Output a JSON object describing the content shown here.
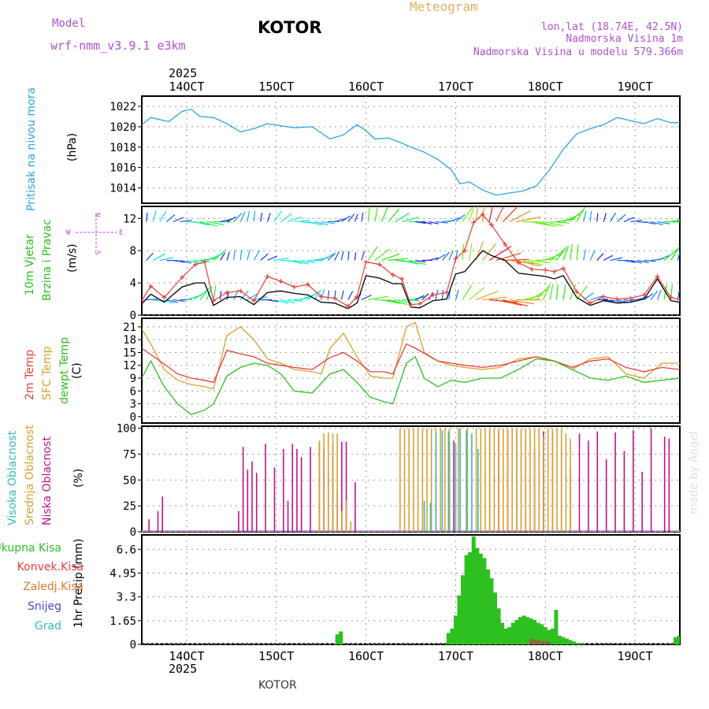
{
  "header": {
    "model_label": "Model",
    "model_name": "wrf-nmm_v3.9.1 e3km",
    "station": "KOTOR",
    "chart_type": "Meteogram",
    "coords": "lon,lat (18.74E, 42.5N)",
    "altitude": "Nadmorska Visina 1m",
    "model_altitude": "Nadmorska Visina u modelu 579.366m",
    "footer_station": "KOTOR",
    "watermark": "made by Angel",
    "year": "2025"
  },
  "x_axis": {
    "ticks": [
      "14OCT",
      "15OCT",
      "16OCT",
      "17OCT",
      "18OCT",
      "19OCT"
    ],
    "start_day": 13.5,
    "end_day": 19.5,
    "tick_days": [
      14,
      15,
      16,
      17,
      18,
      19
    ]
  },
  "colors": {
    "pressure": "#2aa7e0",
    "wind_speed": "#000000",
    "gust": "#e8403c",
    "t2m": "#e8403c",
    "sfc": "#d9a030",
    "dewpt": "#2ec020",
    "high_cloud": "#33bbbb",
    "mid_cloud": "#d9a030",
    "low_cloud": "#c01480",
    "precip_total": "#2ec020",
    "precip_conv": "#e8403c",
    "precip_strat": "#e07a2e",
    "snow": "#4848e0",
    "grad": "#33bbbb"
  },
  "chart_data": [
    {
      "type": "line",
      "title": "Pritisak na nivou mora",
      "ylabel": "(hPa)",
      "ylim": [
        1012.5,
        1023
      ],
      "yticks": [
        "1014",
        "1016",
        "1018",
        "1020",
        "1022"
      ],
      "ytick_values": [
        1014,
        1016,
        1018,
        1020,
        1022
      ],
      "series": [
        {
          "name": "Pritisak",
          "x": [
            13.5,
            13.6,
            13.8,
            13.95,
            14.05,
            14.15,
            14.3,
            14.45,
            14.6,
            14.75,
            14.9,
            15.05,
            15.2,
            15.4,
            15.6,
            15.75,
            15.9,
            16.0,
            16.1,
            16.25,
            16.4,
            16.5,
            16.65,
            16.8,
            16.95,
            17.05,
            17.15,
            17.3,
            17.45,
            17.6,
            17.75,
            17.9,
            18.05,
            18.2,
            18.35,
            18.5,
            18.65,
            18.8,
            18.95,
            19.1,
            19.25,
            19.4,
            19.5
          ],
          "values": [
            1020.2,
            1020.9,
            1020.5,
            1021.5,
            1021.7,
            1021.0,
            1020.9,
            1020.3,
            1019.5,
            1019.8,
            1020.3,
            1020.1,
            1019.9,
            1020.0,
            1018.8,
            1019.2,
            1020.2,
            1019.6,
            1018.8,
            1018.9,
            1018.4,
            1018.0,
            1017.5,
            1016.8,
            1015.8,
            1014.4,
            1014.6,
            1013.8,
            1013.3,
            1013.5,
            1013.7,
            1014.2,
            1015.8,
            1017.8,
            1019.3,
            1019.8,
            1020.2,
            1020.9,
            1020.6,
            1020.3,
            1020.8,
            1020.4,
            1020.4
          ]
        }
      ]
    },
    {
      "type": "line",
      "title": "10m Vjetar Brzina i Pravac",
      "ylabel": "(m/s)",
      "ylim": [
        0,
        13.5
      ],
      "yticks": [
        "0",
        "4",
        "8",
        "12"
      ],
      "ytick_values": [
        0,
        4,
        8,
        12
      ],
      "compass": [
        "N",
        "W",
        "E",
        "S"
      ],
      "series": [
        {
          "name": "Brzina",
          "x": [
            13.5,
            13.6,
            13.75,
            13.95,
            14.1,
            14.2,
            14.3,
            14.45,
            14.6,
            14.75,
            14.9,
            15.05,
            15.2,
            15.35,
            15.5,
            15.65,
            15.8,
            15.9,
            16.0,
            16.15,
            16.3,
            16.4,
            16.5,
            16.6,
            16.75,
            16.9,
            17.0,
            17.1,
            17.2,
            17.3,
            17.4,
            17.55,
            17.7,
            17.85,
            18.0,
            18.1,
            18.2,
            18.35,
            18.5,
            18.65,
            18.8,
            18.95,
            19.1,
            19.25,
            19.4,
            19.5
          ],
          "values": [
            1.4,
            2.6,
            1.6,
            3.5,
            4.0,
            4.0,
            1.2,
            2.2,
            2.3,
            1.3,
            2.8,
            3.0,
            2.7,
            2.5,
            1.6,
            1.5,
            0.8,
            1.5,
            4.9,
            4.6,
            3.9,
            3.9,
            1.0,
            0.9,
            1.8,
            2.0,
            5.1,
            5.4,
            6.7,
            8.0,
            7.4,
            6.8,
            5.2,
            5.0,
            4.8,
            4.5,
            4.9,
            2.2,
            1.2,
            1.8,
            1.5,
            1.6,
            2.0,
            4.5,
            1.8,
            1.6
          ]
        },
        {
          "name": "Udari",
          "x": [
            13.5,
            13.6,
            13.75,
            13.95,
            14.1,
            14.2,
            14.3,
            14.45,
            14.6,
            14.75,
            14.9,
            15.05,
            15.2,
            15.35,
            15.5,
            15.65,
            15.8,
            15.9,
            16.0,
            16.15,
            16.3,
            16.4,
            16.5,
            16.6,
            16.75,
            16.9,
            17.0,
            17.1,
            17.2,
            17.3,
            17.4,
            17.55,
            17.7,
            17.85,
            18.0,
            18.1,
            18.2,
            18.35,
            18.5,
            18.65,
            18.8,
            18.95,
            19.1,
            19.25,
            19.4,
            19.5
          ],
          "values": [
            1.8,
            3.6,
            2.2,
            4.7,
            6.3,
            6.6,
            1.8,
            2.8,
            3.0,
            1.8,
            4.8,
            4.2,
            3.5,
            3.8,
            2.3,
            2.1,
            1.1,
            2.3,
            6.6,
            6.3,
            5.0,
            4.5,
            1.3,
            1.4,
            2.5,
            2.8,
            7.0,
            8.0,
            11.5,
            12.5,
            11.2,
            8.8,
            6.5,
            5.7,
            5.6,
            5.4,
            5.8,
            2.9,
            1.5,
            2.3,
            2.0,
            2.1,
            2.5,
            4.8,
            2.2,
            1.9
          ]
        }
      ]
    },
    {
      "type": "line",
      "title": "2m Temp / SFC Temp / dewpt Temp",
      "ylabel": "(C)",
      "ylim": [
        -1.5,
        23
      ],
      "yticks": [
        "0",
        "3",
        "6",
        "9",
        "12",
        "15",
        "18",
        "21"
      ],
      "ytick_values": [
        0,
        3,
        6,
        9,
        12,
        15,
        18,
        21
      ],
      "series": [
        {
          "name": "2m Temp",
          "x": [
            13.5,
            13.6,
            13.75,
            13.9,
            14.05,
            14.2,
            14.3,
            14.45,
            14.6,
            14.75,
            14.9,
            15.05,
            15.2,
            15.4,
            15.6,
            15.75,
            15.9,
            16.05,
            16.2,
            16.3,
            16.45,
            16.55,
            16.65,
            16.8,
            16.95,
            17.1,
            17.3,
            17.5,
            17.7,
            17.9,
            18.1,
            18.3,
            18.5,
            18.7,
            18.9,
            19.1,
            19.3,
            19.5
          ],
          "values": [
            16.0,
            14.5,
            12.3,
            10.0,
            9.0,
            8.5,
            8.0,
            15.5,
            14.7,
            14.0,
            12.5,
            12.0,
            11.5,
            11.0,
            13.8,
            15.0,
            13.0,
            10.5,
            10.5,
            10.0,
            17.0,
            16.0,
            14.8,
            13.0,
            12.5,
            12.0,
            11.5,
            12.0,
            13.0,
            14.0,
            13.0,
            11.5,
            13.0,
            13.5,
            11.5,
            10.5,
            11.5,
            11.0
          ]
        },
        {
          "name": "SFC Temp",
          "x": [
            13.5,
            13.6,
            13.75,
            13.9,
            14.05,
            14.2,
            14.3,
            14.45,
            14.6,
            14.75,
            14.9,
            15.05,
            15.2,
            15.4,
            15.5,
            15.6,
            15.75,
            15.9,
            16.05,
            16.2,
            16.3,
            16.45,
            16.55,
            16.65,
            16.8,
            16.95,
            17.1,
            17.3,
            17.5,
            17.7,
            17.9,
            18.1,
            18.3,
            18.5,
            18.7,
            18.9,
            19.1,
            19.3,
            19.5
          ],
          "values": [
            20.5,
            17.0,
            11.0,
            8.5,
            7.5,
            7.0,
            6.5,
            19.0,
            21.0,
            18.0,
            13.5,
            12.5,
            11.0,
            10.5,
            10.0,
            16.0,
            19.5,
            14.0,
            9.5,
            9.0,
            9.0,
            21.0,
            22.0,
            15.0,
            13.0,
            12.0,
            11.5,
            11.0,
            11.5,
            13.5,
            14.0,
            13.0,
            11.0,
            13.5,
            14.0,
            10.0,
            9.0,
            12.5,
            12.5
          ]
        },
        {
          "name": "dewpt Temp",
          "x": [
            13.5,
            13.6,
            13.75,
            13.9,
            14.05,
            14.2,
            14.3,
            14.45,
            14.6,
            14.75,
            14.9,
            15.05,
            15.2,
            15.4,
            15.6,
            15.75,
            15.9,
            16.05,
            16.2,
            16.3,
            16.45,
            16.55,
            16.65,
            16.8,
            16.95,
            17.1,
            17.3,
            17.5,
            17.7,
            17.9,
            18.1,
            18.3,
            18.5,
            18.7,
            18.9,
            19.1,
            19.3,
            19.5
          ],
          "values": [
            9.0,
            13.0,
            7.0,
            3.0,
            0.5,
            1.5,
            3.0,
            9.5,
            11.5,
            12.5,
            12.0,
            10.0,
            6.0,
            5.5,
            10.0,
            11.0,
            8.0,
            4.5,
            3.5,
            3.0,
            12.5,
            14.0,
            9.0,
            7.0,
            8.5,
            8.0,
            9.0,
            9.0,
            11.0,
            13.5,
            13.0,
            11.0,
            9.0,
            8.5,
            9.5,
            8.0,
            8.5,
            9.0
          ]
        }
      ]
    },
    {
      "type": "bar",
      "title": "Visoka / Srednja / Niska Oblacnost",
      "ylabel": "(%)",
      "ylim": [
        0,
        102
      ],
      "yticks": [
        "0",
        "25",
        "50",
        "75",
        "100"
      ],
      "ytick_values": [
        0,
        25,
        50,
        75,
        100
      ],
      "series": [
        {
          "name": "Niska Oblacnost",
          "x": [
            13.58,
            13.68,
            13.73,
            14.58,
            14.63,
            14.68,
            14.73,
            14.78,
            14.88,
            14.98,
            15.08,
            15.13,
            15.18,
            15.23,
            15.28,
            15.38,
            15.48,
            15.53,
            15.58,
            15.63,
            15.68,
            15.73,
            15.78,
            15.88,
            16.93,
            16.98,
            17.38,
            17.48,
            17.58,
            17.68,
            17.78,
            17.88,
            17.98,
            18.08,
            18.18,
            18.28,
            18.38,
            18.48,
            18.58,
            18.68,
            18.78,
            18.88,
            18.98,
            19.08,
            19.18,
            19.33,
            19.38
          ],
          "values": [
            12,
            20,
            34,
            20,
            82,
            60,
            68,
            57,
            85,
            62,
            80,
            30,
            85,
            80,
            72,
            82,
            85,
            80,
            60,
            84,
            40,
            87,
            87,
            48,
            86,
            88,
            98,
            97,
            98,
            97,
            95,
            80,
            97,
            95,
            80,
            62,
            95,
            88,
            97,
            70,
            96,
            78,
            98,
            58,
            100,
            92,
            90
          ]
        },
        {
          "name": "Srednja Oblacnost",
          "x": [
            15.48,
            15.53,
            15.58,
            15.63,
            15.68,
            15.73,
            15.78,
            15.83,
            16.38,
            16.43,
            16.48,
            16.53,
            16.58,
            16.63,
            16.68,
            16.73,
            16.78,
            16.83,
            16.88,
            16.93,
            17.03,
            17.13,
            17.23,
            17.28,
            17.33,
            17.38,
            17.43,
            17.48,
            17.53,
            17.58,
            17.63,
            17.68,
            17.73,
            17.78,
            17.83,
            17.88,
            17.93,
            17.98,
            18.03,
            18.08,
            18.13,
            18.18,
            18.23,
            18.28
          ],
          "values": [
            88,
            95,
            96,
            95,
            95,
            20,
            30,
            10,
            100,
            100,
            100,
            100,
            100,
            100,
            100,
            100,
            100,
            100,
            100,
            100,
            100,
            100,
            100,
            100,
            100,
            100,
            100,
            100,
            100,
            100,
            100,
            100,
            100,
            100,
            100,
            100,
            100,
            92,
            100,
            100,
            100,
            100,
            95,
            90
          ]
        },
        {
          "name": "Visoka Oblacnost",
          "x": [
            16.65,
            16.72,
            16.78,
            16.85,
            16.92,
            17.0,
            17.05,
            17.12,
            17.18,
            17.25
          ],
          "values": [
            30,
            28,
            95,
            98,
            97,
            85,
            100,
            98,
            95,
            80
          ]
        }
      ]
    },
    {
      "type": "bar",
      "title": "1hr Precip",
      "ylabel": "1hr Precip (mm)",
      "ylim": [
        0,
        7.6
      ],
      "yticks": [
        "0",
        "1.65",
        "3.3",
        "4.95",
        "6.6"
      ],
      "ytick_values": [
        0,
        1.65,
        3.3,
        4.95,
        6.6
      ],
      "series": [
        {
          "name": "Ukupna Kisa",
          "x": [
            15.68,
            15.72,
            16.92,
            16.96,
            17.0,
            17.04,
            17.08,
            17.12,
            17.16,
            17.2,
            17.24,
            17.28,
            17.32,
            17.36,
            17.4,
            17.44,
            17.48,
            17.52,
            17.56,
            17.6,
            17.64,
            17.68,
            17.72,
            17.76,
            17.8,
            17.84,
            17.88,
            17.92,
            17.96,
            18.0,
            18.04,
            18.08,
            18.12,
            18.16,
            18.2,
            18.24,
            18.28,
            18.32,
            18.36,
            18.4,
            19.45,
            19.49
          ],
          "values": [
            0.7,
            0.9,
            0.8,
            1.1,
            2.0,
            3.4,
            4.8,
            6.2,
            6.4,
            7.5,
            6.7,
            6.3,
            6.0,
            5.2,
            4.6,
            3.6,
            2.5,
            1.5,
            1.1,
            1.2,
            1.5,
            1.7,
            1.9,
            2.0,
            1.9,
            1.8,
            1.7,
            1.5,
            1.4,
            1.2,
            1.0,
            1.1,
            2.4,
            0.6,
            0.5,
            0.4,
            0.3,
            0.2,
            0.1,
            0.1,
            0.5,
            0.6
          ]
        },
        {
          "name": "Konvek.Kisa",
          "x": [
            17.84,
            17.88,
            17.92,
            17.96,
            18.0,
            18.04
          ],
          "values": [
            0.4,
            0.3,
            0.3,
            0.2,
            0.2,
            0.2
          ]
        }
      ]
    }
  ],
  "left_labels": {
    "pressure": "Pritisak na nivou mora",
    "wind1": "10m Vjetar",
    "wind2": "Brzina i Pravac",
    "temp1": "2m Temp",
    "temp2": "SFC Temp",
    "temp3": "dewpt Temp",
    "cloud1": "Visoka Oblacnost",
    "cloud2": "Srednja Oblacnost",
    "cloud3": "Niska Oblacnost",
    "precip_legend": [
      "Ukupna Kisa",
      "Konvek.Kisa",
      "Zaledj.Kisa",
      "Snijeg",
      "Grad"
    ]
  }
}
